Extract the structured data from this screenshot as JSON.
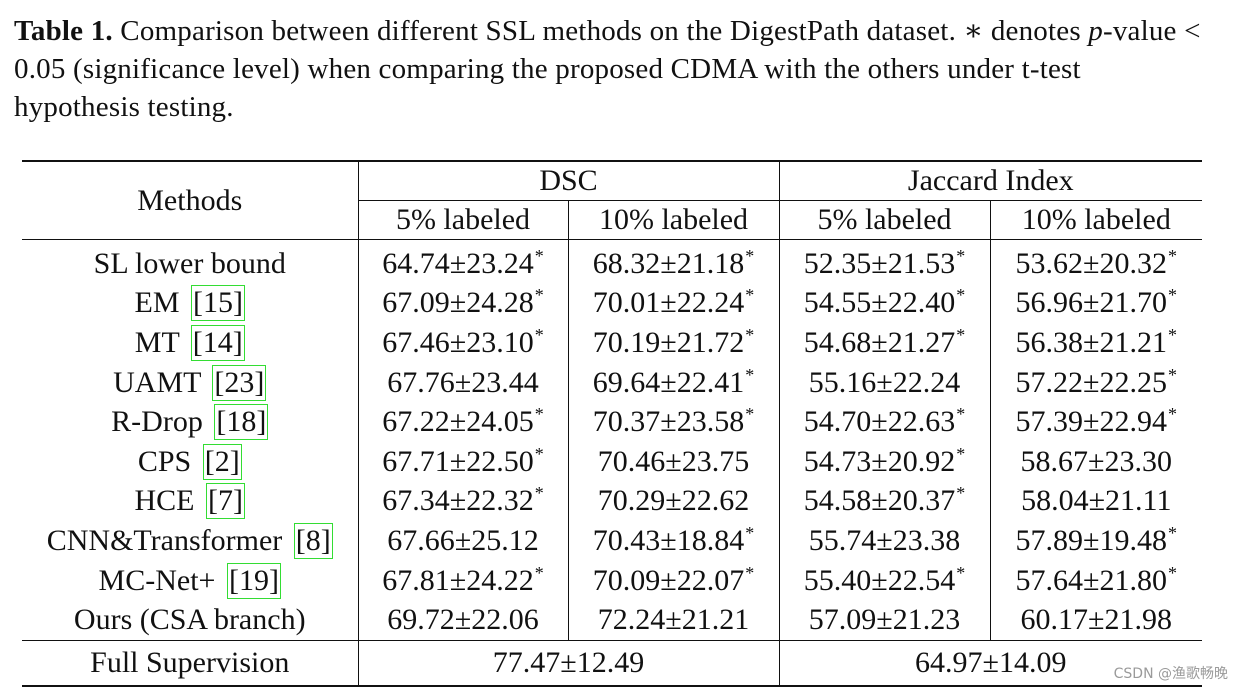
{
  "caption": {
    "label": "Table 1.",
    "text_a": " Comparison between different SSL methods on the DigestPath dataset. ∗ denotes ",
    "pvalue_symbol": "p",
    "text_b": "-value < 0.05 (significance level) when comparing the proposed CDMA with the others under t-test hypothesis testing."
  },
  "table": {
    "col_methods": "Methods",
    "group_dsc": "DSC",
    "group_jaccard": "Jaccard Index",
    "sub_5": "5% labeled",
    "sub_10": "10% labeled",
    "sig_mark": "*",
    "rows": [
      {
        "method": "SL lower bound",
        "ref": "",
        "dsc5": "64.74±23.24",
        "dsc5_sig": "*",
        "dsc10": "68.32±21.18",
        "dsc10_sig": "*",
        "jac5": "52.35±21.53",
        "jac5_sig": "*",
        "jac10": "53.62±20.32",
        "jac10_sig": "*"
      },
      {
        "method": "EM",
        "ref": "15",
        "dsc5": "67.09±24.28",
        "dsc5_sig": "*",
        "dsc10": "70.01±22.24",
        "dsc10_sig": "*",
        "jac5": "54.55±22.40",
        "jac5_sig": "*",
        "jac10": "56.96±21.70",
        "jac10_sig": "*"
      },
      {
        "method": "MT",
        "ref": "14",
        "dsc5": "67.46±23.10",
        "dsc5_sig": "*",
        "dsc10": "70.19±21.72",
        "dsc10_sig": "*",
        "jac5": "54.68±21.27",
        "jac5_sig": "*",
        "jac10": "56.38±21.21",
        "jac10_sig": "*"
      },
      {
        "method": "UAMT",
        "ref": "23",
        "dsc5": "67.76±23.44",
        "dsc5_sig": "",
        "dsc10": "69.64±22.41",
        "dsc10_sig": "*",
        "jac5": "55.16±22.24",
        "jac5_sig": "",
        "jac10": "57.22±22.25",
        "jac10_sig": "*"
      },
      {
        "method": "R-Drop",
        "ref": "18",
        "dsc5": "67.22±24.05",
        "dsc5_sig": "*",
        "dsc10": "70.37±23.58",
        "dsc10_sig": "*",
        "jac5": "54.70±22.63",
        "jac5_sig": "*",
        "jac10": "57.39±22.94",
        "jac10_sig": "*"
      },
      {
        "method": "CPS",
        "ref": "2",
        "dsc5": "67.71±22.50",
        "dsc5_sig": "*",
        "dsc10": "70.46±23.75",
        "dsc10_sig": "",
        "jac5": "54.73±20.92",
        "jac5_sig": "*",
        "jac10": "58.67±23.30",
        "jac10_sig": ""
      },
      {
        "method": "HCE",
        "ref": "7",
        "dsc5": "67.34±22.32",
        "dsc5_sig": "*",
        "dsc10": "70.29±22.62",
        "dsc10_sig": "",
        "jac5": "54.58±20.37",
        "jac5_sig": "*",
        "jac10": "58.04±21.11",
        "jac10_sig": ""
      },
      {
        "method": "CNN&Transformer",
        "ref": "8",
        "dsc5": "67.66±25.12",
        "dsc5_sig": "",
        "dsc10": "70.43±18.84",
        "dsc10_sig": "*",
        "jac5": "55.74±23.38",
        "jac5_sig": "",
        "jac10": "57.89±19.48",
        "jac10_sig": "*"
      },
      {
        "method": "MC-Net+",
        "ref": "19",
        "dsc5": "67.81±24.22",
        "dsc5_sig": "*",
        "dsc10": "70.09±22.07",
        "dsc10_sig": "*",
        "jac5": "55.40±22.54",
        "jac5_sig": "*",
        "jac10": "57.64±21.80",
        "jac10_sig": "*"
      }
    ],
    "ours": {
      "method": "Ours (CSA branch)",
      "dsc5": "69.72±22.06",
      "dsc10": "72.24±21.21",
      "jac5": "57.09±21.23",
      "jac10": "60.17±21.98"
    },
    "full": {
      "method": "Full Supervision",
      "dsc": "77.47±12.49",
      "jac": "64.97±14.09"
    }
  },
  "watermark": "CSDN @渔歌畅晚"
}
